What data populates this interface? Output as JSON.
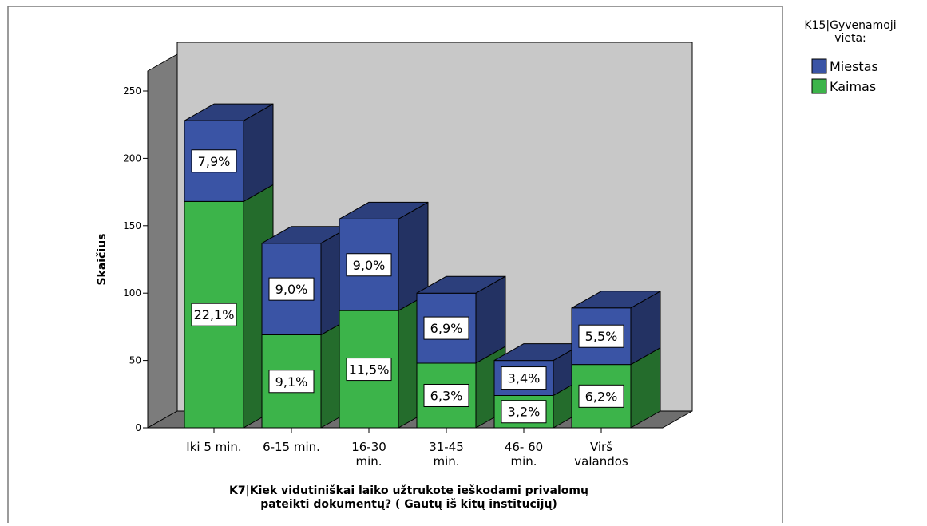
{
  "chart_data": {
    "type": "bar",
    "stacked": true,
    "three_d": true,
    "categories": [
      "Iki 5 min.",
      "6-15 min.",
      "16-30 min.",
      "31-45 min.",
      "46- 60 min.",
      "Virš valandos"
    ],
    "category_lines": [
      [
        "Iki 5 min."
      ],
      [
        "6-15 min."
      ],
      [
        "16-30",
        "min."
      ],
      [
        "31-45",
        "min."
      ],
      [
        "46- 60",
        "min."
      ],
      [
        "Virš",
        "valandos"
      ]
    ],
    "series": [
      {
        "name": "Kaimas",
        "color": "#3cb44a",
        "values": [
          168,
          69,
          87,
          48,
          24,
          47
        ],
        "labels": [
          "22,1%",
          "9,1%",
          "11,5%",
          "6,3%",
          "3,2%",
          "6,2%"
        ]
      },
      {
        "name": "Miestas",
        "color": "#3a54a5",
        "values": [
          60,
          68,
          68,
          52,
          26,
          42
        ],
        "labels": [
          "7,9%",
          "9,0%",
          "9,0%",
          "6,9%",
          "3,4%",
          "5,5%"
        ]
      }
    ],
    "ylabel": "Skaičius",
    "xlabel_lines": [
      "K7|Kiek vidutiniškai laiko užtrukote ieškodami privalomų",
      "pateikti dokumentų? ( Gautų iš kitų institucijų)"
    ],
    "ylim": [
      0,
      250
    ],
    "yticks": [
      0,
      50,
      100,
      150,
      200,
      250
    ],
    "legend": {
      "title_lines": [
        "K15|Gyvenamoji",
        "vieta:"
      ],
      "items": [
        {
          "label": "Miestas",
          "color": "#3a54a5"
        },
        {
          "label": "Kaimas",
          "color": "#3cb44a"
        }
      ],
      "position": "top-right"
    },
    "grid": false,
    "colors": {
      "back_wall": "#c8c8c8",
      "side_wall": "#7c7c7c",
      "floor": "#6e6e6e",
      "outline": "#000000"
    }
  }
}
